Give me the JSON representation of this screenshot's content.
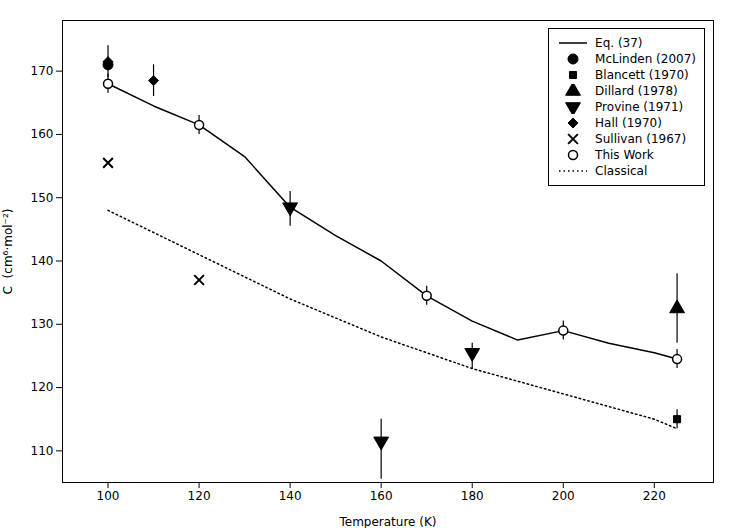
{
  "chart_data": {
    "type": "line",
    "xlabel": "Temperature (K)",
    "ylabel": "C  (cm⁶·mol⁻²)",
    "xlim": [
      90,
      233
    ],
    "ylim": [
      105,
      178
    ],
    "xticks": [
      100,
      120,
      140,
      160,
      180,
      200,
      220
    ],
    "yticks": [
      110,
      120,
      130,
      140,
      150,
      160,
      170
    ],
    "grid": false,
    "legend": "upper right",
    "series": [
      {
        "name": "Eq. (37)",
        "type": "line",
        "line_style": "solid",
        "color": "#000000",
        "x": [
          100,
          110,
          120,
          130,
          140,
          150,
          160,
          170,
          180,
          190,
          200,
          210,
          220,
          225
        ],
        "values": [
          168.0,
          164.5,
          161.5,
          156.5,
          148.5,
          144.0,
          140.0,
          134.5,
          130.5,
          127.5,
          129.0,
          127.0,
          125.5,
          124.5
        ]
      },
      {
        "name": "McLinden (2007)",
        "type": "scatter",
        "marker": "circle",
        "color": "#000000",
        "x": [
          100
        ],
        "values": [
          171.0
        ]
      },
      {
        "name": "Blancett (1970)",
        "type": "scatter",
        "marker": "square",
        "color": "#000000",
        "x": [
          225
        ],
        "values": [
          115.0
        ],
        "yerr_lo": [
          1.5
        ],
        "yerr_hi": [
          1.5
        ]
      },
      {
        "name": "Dillard (1978)",
        "type": "scatter",
        "marker": "triangle-up",
        "color": "#000000",
        "x": [
          225
        ],
        "values": [
          132.5
        ],
        "yerr_lo": [
          5.5
        ],
        "yerr_hi": [
          5.5
        ]
      },
      {
        "name": "Provine (1971)",
        "type": "scatter",
        "marker": "triangle-down",
        "color": "#000000",
        "x": [
          140,
          160,
          180
        ],
        "values": [
          148.5,
          111.5,
          125.5
        ],
        "yerr_lo": [
          3.0,
          6.0,
          2.5
        ],
        "yerr_hi": [
          2.5,
          3.5,
          1.5
        ]
      },
      {
        "name": "Hall (1970)",
        "type": "scatter",
        "marker": "diamond",
        "color": "#000000",
        "x": [
          100,
          110
        ],
        "values": [
          171.5,
          168.5
        ],
        "yerr_lo": [
          2.5,
          2.5
        ],
        "yerr_hi": [
          2.5,
          2.5
        ]
      },
      {
        "name": "Sullivan (1967)",
        "type": "scatter",
        "marker": "x",
        "color": "#000000",
        "x": [
          100,
          120
        ],
        "values": [
          155.5,
          137.0
        ]
      },
      {
        "name": "This Work",
        "type": "scatter",
        "marker": "open-circle",
        "color": "#000000",
        "x": [
          100,
          120,
          170,
          200,
          225
        ],
        "values": [
          168.0,
          161.5,
          134.5,
          129.0,
          124.5
        ],
        "yerr_lo": [
          1.5,
          1.5,
          1.5,
          1.5,
          1.5
        ],
        "yerr_hi": [
          1.5,
          1.5,
          1.5,
          1.5,
          1.5
        ]
      },
      {
        "name": "Classical",
        "type": "line",
        "line_style": "dotted",
        "color": "#000000",
        "x": [
          100,
          110,
          120,
          130,
          140,
          150,
          160,
          170,
          180,
          190,
          200,
          210,
          220,
          225
        ],
        "values": [
          148.0,
          144.5,
          141.0,
          137.5,
          134.0,
          131.0,
          128.0,
          125.5,
          123.0,
          121.0,
          119.0,
          117.0,
          115.0,
          113.5
        ]
      }
    ]
  }
}
